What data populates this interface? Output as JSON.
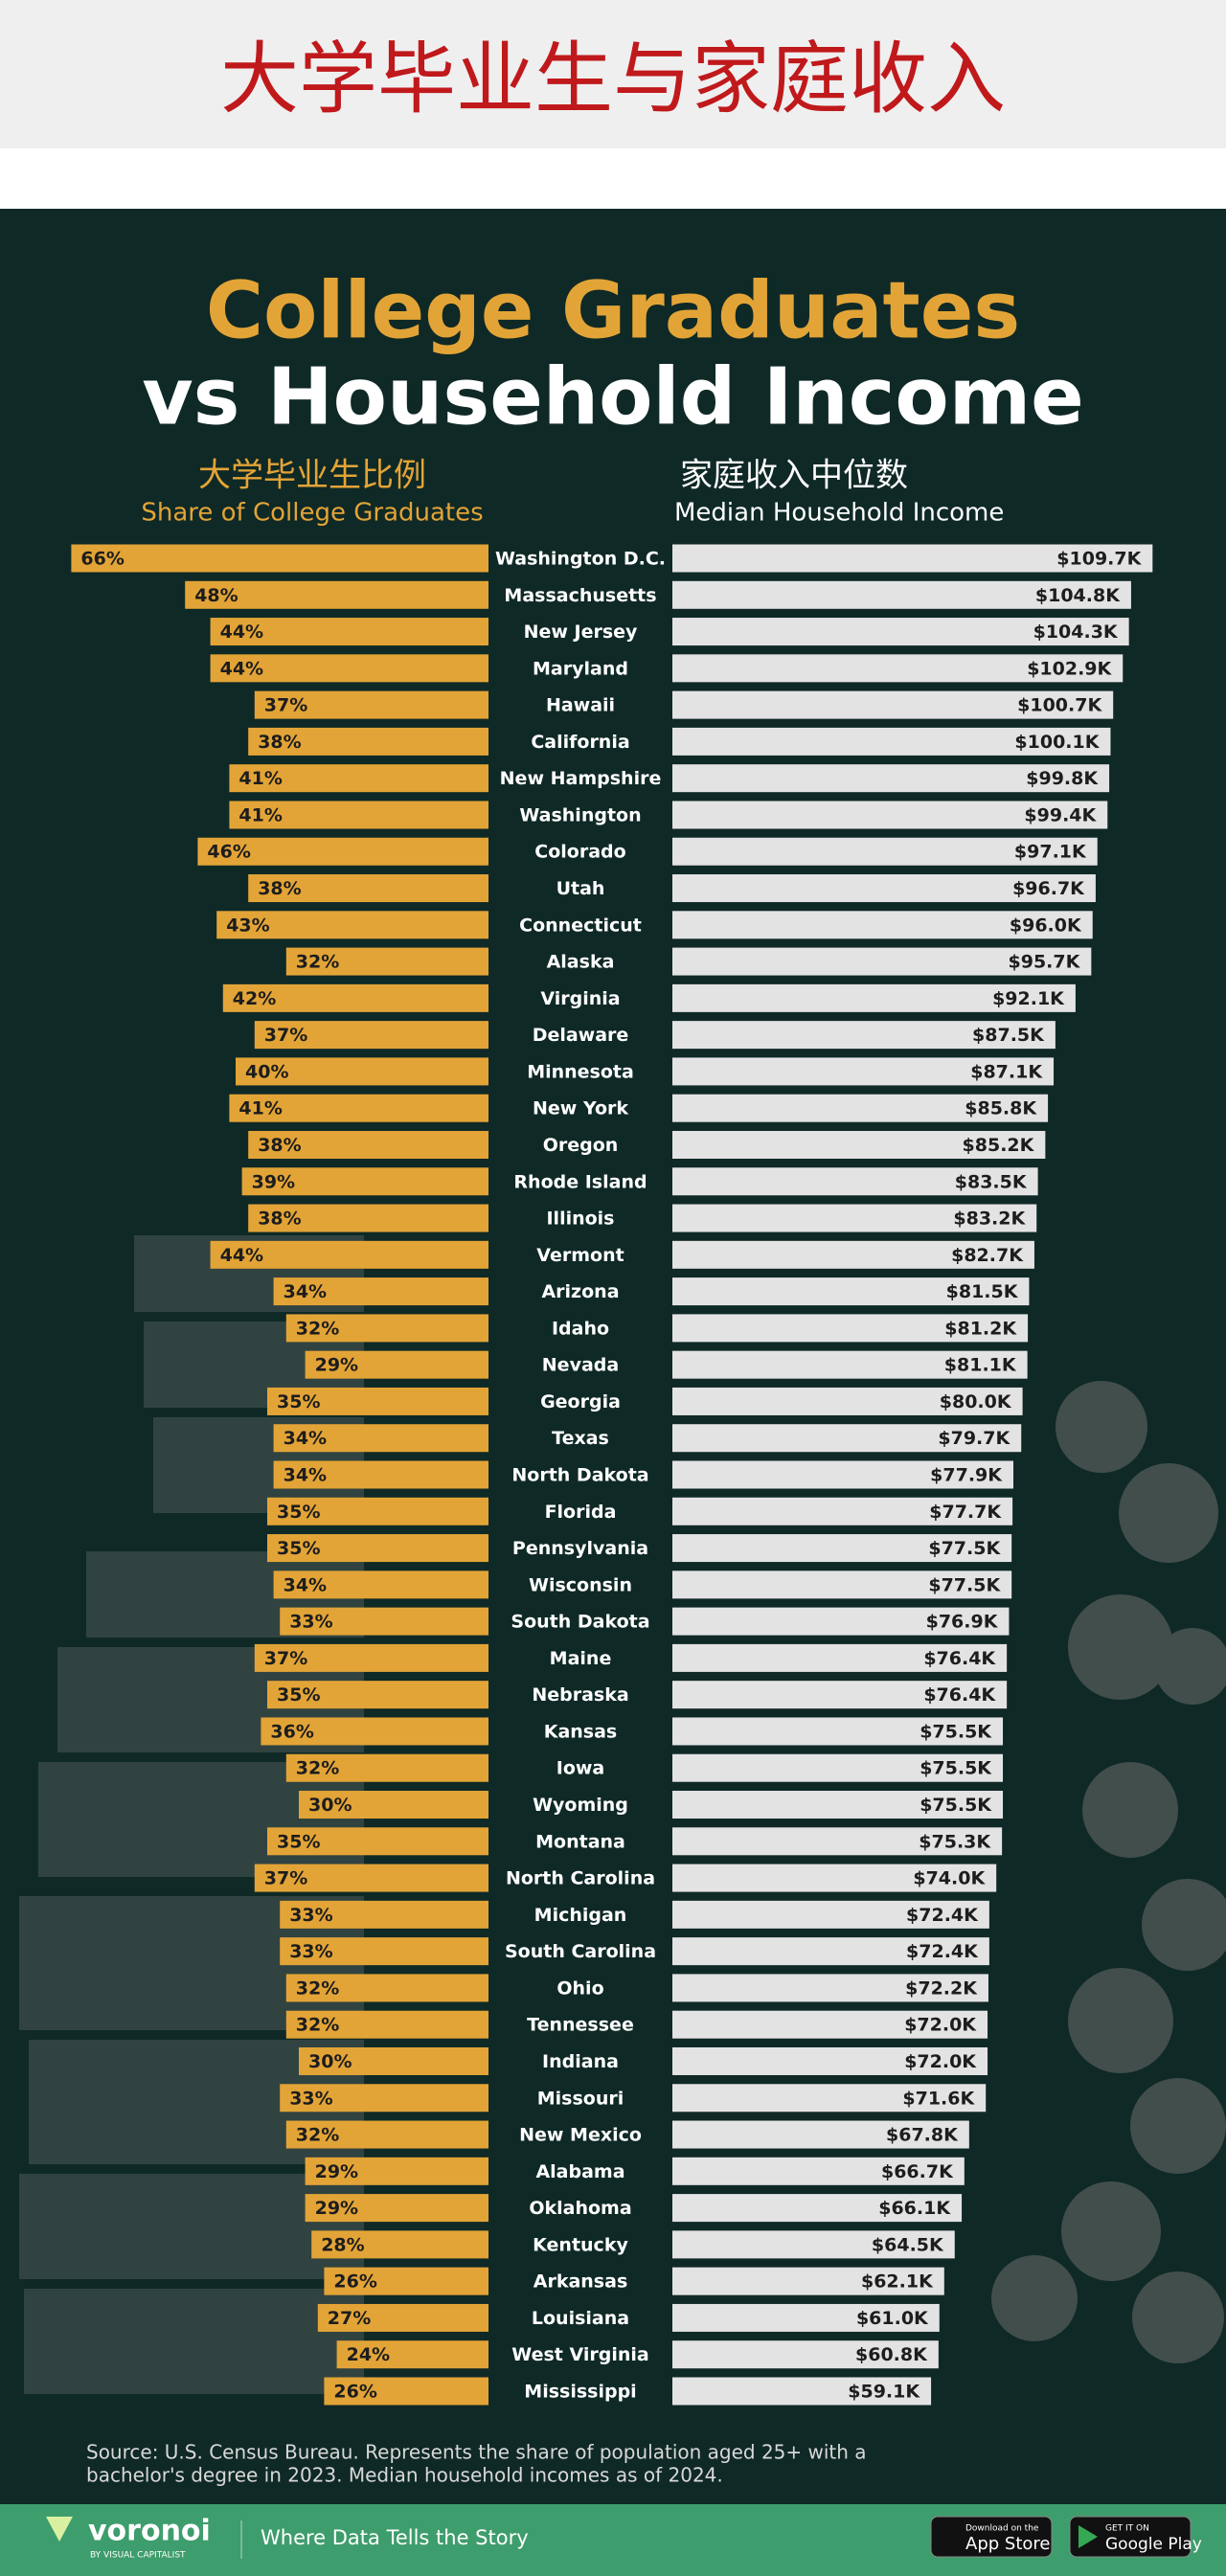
{
  "header": {
    "title": "大学毕业生与家庭收入"
  },
  "chart_data": {
    "type": "mirrored-bar",
    "title": "College Graduates",
    "subtitle": "vs Household Income",
    "categories": [
      "Washington D.C.",
      "Massachusetts",
      "New Jersey",
      "Maryland",
      "Hawaii",
      "California",
      "New Hampshire",
      "Washington",
      "Colorado",
      "Utah",
      "Connecticut",
      "Alaska",
      "Virginia",
      "Delaware",
      "Minnesota",
      "New York",
      "Oregon",
      "Rhode Island",
      "Illinois",
      "Vermont",
      "Arizona",
      "Idaho",
      "Nevada",
      "Georgia",
      "Texas",
      "North Dakota",
      "Florida",
      "Pennsylvania",
      "Wisconsin",
      "South Dakota",
      "Maine",
      "Nebraska",
      "Kansas",
      "Iowa",
      "Wyoming",
      "Montana",
      "North Carolina",
      "Michigan",
      "South Carolina",
      "Ohio",
      "Tennessee",
      "Indiana",
      "Missouri",
      "New Mexico",
      "Alabama",
      "Oklahoma",
      "Kentucky",
      "Arkansas",
      "Louisiana",
      "West Virginia",
      "Mississippi"
    ],
    "series": [
      {
        "name": "Share of College Graduates",
        "name_zh": "大学毕业生比例",
        "color": "#e3a437",
        "values": [
          66,
          48,
          44,
          44,
          37,
          38,
          41,
          41,
          46,
          38,
          43,
          32,
          42,
          37,
          40,
          41,
          38,
          39,
          38,
          44,
          34,
          32,
          29,
          35,
          34,
          34,
          35,
          35,
          34,
          33,
          37,
          35,
          36,
          32,
          30,
          35,
          37,
          33,
          33,
          32,
          32,
          30,
          33,
          32,
          29,
          29,
          28,
          26,
          27,
          24,
          26
        ],
        "value_labels": [
          "66%",
          "48%",
          "44%",
          "44%",
          "37%",
          "38%",
          "41%",
          "41%",
          "46%",
          "38%",
          "43%",
          "32%",
          "42%",
          "37%",
          "40%",
          "41%",
          "38%",
          "39%",
          "38%",
          "44%",
          "34%",
          "32%",
          "29%",
          "35%",
          "34%",
          "34%",
          "35%",
          "35%",
          "34%",
          "33%",
          "37%",
          "35%",
          "36%",
          "32%",
          "30%",
          "35%",
          "37%",
          "33%",
          "33%",
          "32%",
          "32%",
          "30%",
          "33%",
          "32%",
          "29%",
          "29%",
          "28%",
          "26%",
          "27%",
          "24%",
          "26%"
        ]
      },
      {
        "name": "Median Household Income",
        "name_zh": "家庭收入中位数",
        "color": "#e4e3e4",
        "values": [
          109.7,
          104.8,
          104.3,
          102.9,
          100.7,
          100.1,
          99.8,
          99.4,
          97.1,
          96.7,
          96.0,
          95.7,
          92.1,
          87.5,
          87.1,
          85.8,
          85.2,
          83.5,
          83.2,
          82.7,
          81.5,
          81.2,
          81.1,
          80.0,
          79.7,
          77.9,
          77.7,
          77.5,
          77.5,
          76.9,
          76.4,
          76.4,
          75.5,
          75.5,
          75.5,
          75.3,
          74.0,
          72.4,
          72.4,
          72.2,
          72.0,
          72.0,
          71.6,
          67.8,
          66.7,
          66.1,
          64.5,
          62.1,
          61.0,
          60.8,
          59.1
        ],
        "value_labels": [
          "$109.7K",
          "$104.8K",
          "$104.3K",
          "$102.9K",
          "$100.7K",
          "$100.1K",
          "$99.8K",
          "$99.4K",
          "$97.1K",
          "$96.7K",
          "$96.0K",
          "$95.7K",
          "$92.1K",
          "$87.5K",
          "$87.1K",
          "$85.8K",
          "$85.2K",
          "$83.5K",
          "$83.2K",
          "$82.7K",
          "$81.5K",
          "$81.2K",
          "$81.1K",
          "$80.0K",
          "$79.7K",
          "$77.9K",
          "$77.7K",
          "$77.5K",
          "$77.5K",
          "$76.9K",
          "$76.4K",
          "$76.4K",
          "$75.5K",
          "$75.5K",
          "$75.5K",
          "$75.3K",
          "$74.0K",
          "$72.4K",
          "$72.4K",
          "$72.2K",
          "$72.0K",
          "$72.0K",
          "$71.6K",
          "$67.8K",
          "$66.7K",
          "$66.1K",
          "$64.5K",
          "$62.1K",
          "$61.0K",
          "$60.8K",
          "$59.1K"
        ]
      }
    ],
    "source": [
      "Source: U.S. Census Bureau. Represents the share of population aged 25+ with a",
      "bachelor's degree in 2023. Median household incomes as of 2024."
    ]
  },
  "footer": {
    "brand": "voronoi",
    "brand_sub": "BY VISUAL CAPITALIST",
    "tagline": "Where Data Tells the Story",
    "app_store_small": "Download on the",
    "app_store": "App Store",
    "google_small": "GET IT ON",
    "google": "Google Play"
  }
}
